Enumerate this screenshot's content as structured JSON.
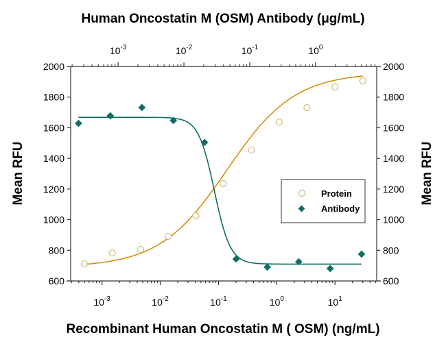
{
  "chart_data": {
    "type": "scatter",
    "title": "Human Oncostatin M (OSM) Antibody (μg/mL)",
    "xlabel": "Recombinant Human Oncostatin M ( OSM) (ng/mL)",
    "x2label": "Human Oncostatin M (OSM) Antibody (μg/mL)",
    "ylabel": "Mean RFU",
    "y2label": "Mean RFU",
    "xscale": "log",
    "x2scale": "log",
    "xlim": [
      0.00029,
      52
    ],
    "x2lim": [
      0.00019,
      8.5
    ],
    "ylim": [
      600,
      2000
    ],
    "yticks": [
      600,
      800,
      1000,
      1200,
      1400,
      1600,
      1800,
      2000
    ],
    "xticks": [
      {
        "base": "10",
        "exp": "-3"
      },
      {
        "base": "10",
        "exp": "-2"
      },
      {
        "base": "10",
        "exp": "-1"
      },
      {
        "base": "10",
        "exp": "0"
      },
      {
        "base": "10",
        "exp": "1"
      }
    ],
    "x2ticks": [
      {
        "base": "10",
        "exp": "-3"
      },
      {
        "base": "10",
        "exp": "-2"
      },
      {
        "base": "10",
        "exp": "-1"
      },
      {
        "base": "10",
        "exp": "0"
      }
    ],
    "grid": false,
    "legend_position": "center-right",
    "series": [
      {
        "name": "Protein",
        "axis": "bottom",
        "marker": "open-circle",
        "color": "#d4900f",
        "x": [
          0.0005,
          0.0015,
          0.0046,
          0.0137,
          0.041,
          0.12,
          0.37,
          1.1,
          3.3,
          10,
          30
        ],
        "y": [
          712,
          783,
          806,
          891,
          1025,
          1235,
          1454,
          1637,
          1731,
          1866,
          1906
        ],
        "fit": {
          "bottom": 690,
          "top": 1960,
          "ec50": 0.14,
          "hill": 0.75
        }
      },
      {
        "name": "Antibody",
        "axis": "top",
        "marker": "filled-diamond",
        "color": "#0e6e63",
        "x": [
          0.00025,
          0.00076,
          0.0023,
          0.0069,
          0.0206,
          0.062,
          0.185,
          0.556,
          1.67,
          5
        ],
        "y": [
          1629,
          1678,
          1732,
          1647,
          1504,
          743,
          690,
          725,
          681,
          775
        ],
        "fit": {
          "bottom": 710,
          "top": 1668,
          "ec50": 0.029,
          "hill": -3.6
        }
      }
    ]
  }
}
